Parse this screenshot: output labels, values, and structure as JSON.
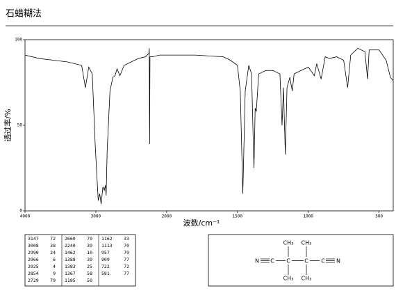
{
  "chart_data": {
    "type": "line",
    "title": "石蜡糊法",
    "x_label": "波数/cm⁻¹",
    "y_label": "透过率/%",
    "xlim": [
      4000,
      400
    ],
    "xticks": [
      4000,
      3000,
      2000,
      1500,
      1000,
      500
    ],
    "x_scale_change": {
      "at": 2000,
      "factor_below": 2
    },
    "ylim": [
      0,
      100
    ],
    "yticks": [
      0,
      50,
      100
    ],
    "color": "#000000",
    "x": [
      4000,
      3800,
      3600,
      3400,
      3200,
      3147,
      3100,
      3050,
      3008,
      2990,
      2966,
      2945,
      2925,
      2900,
      2880,
      2865,
      2854,
      2840,
      2800,
      2760,
      2729,
      2700,
      2660,
      2600,
      2500,
      2400,
      2300,
      2250,
      2245,
      2240,
      2235,
      2200,
      2100,
      2000,
      1800,
      1600,
      1550,
      1500,
      1480,
      1462,
      1445,
      1420,
      1400,
      1388,
      1383,
      1375,
      1367,
      1350,
      1300,
      1250,
      1200,
      1185,
      1175,
      1162,
      1150,
      1130,
      1113,
      1100,
      1050,
      1000,
      957,
      940,
      909,
      880,
      850,
      800,
      750,
      722,
      700,
      650,
      600,
      581,
      570,
      500,
      450,
      420,
      400
    ],
    "values": [
      91,
      89,
      88,
      87,
      85,
      72,
      84,
      80,
      38,
      24,
      6,
      10,
      4,
      14,
      12,
      15,
      9,
      35,
      70,
      78,
      79,
      83,
      79,
      85,
      87,
      89,
      90,
      92,
      95,
      39,
      90,
      90,
      91,
      91,
      91,
      90,
      88,
      85,
      70,
      10,
      70,
      85,
      80,
      39,
      25,
      60,
      58,
      80,
      82,
      82,
      80,
      50,
      72,
      33,
      72,
      78,
      70,
      80,
      82,
      84,
      79,
      86,
      77,
      90,
      89,
      90,
      88,
      72,
      91,
      95,
      93,
      77,
      94,
      94,
      88,
      78,
      76
    ]
  },
  "peak_table": [
    [
      [
        3147,
        72
      ],
      [
        3008,
        38
      ],
      [
        2990,
        24
      ],
      [
        2966,
        6
      ],
      [
        2925,
        4
      ],
      [
        2854,
        9
      ],
      [
        2729,
        79
      ]
    ],
    [
      [
        2660,
        79
      ],
      [
        2240,
        39
      ],
      [
        1462,
        10
      ],
      [
        1388,
        39
      ],
      [
        1383,
        25
      ],
      [
        1367,
        58
      ],
      [
        1185,
        50
      ]
    ],
    [
      [
        1162,
        33
      ],
      [
        1113,
        70
      ],
      [
        957,
        79
      ],
      [
        909,
        77
      ],
      [
        722,
        72
      ],
      [
        581,
        77
      ]
    ]
  ],
  "structure": {
    "atoms": [
      "CH₃",
      "CH₃",
      "N",
      "C",
      "C",
      "C",
      "C",
      "N",
      "CH₃",
      "CH₃"
    ]
  }
}
